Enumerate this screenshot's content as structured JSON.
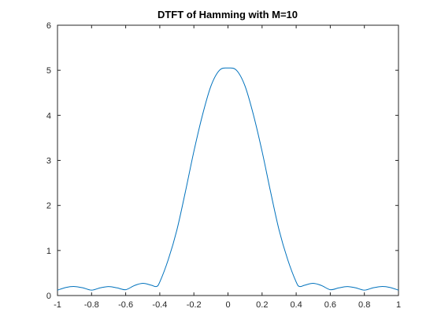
{
  "chart_data": {
    "type": "line",
    "title": "DTFT of Hamming with M=10",
    "xlabel": "",
    "ylabel": "",
    "xlim": [
      -1,
      1
    ],
    "ylim": [
      0,
      6
    ],
    "x_ticks": [
      -1,
      -0.8,
      -0.6,
      -0.4,
      -0.2,
      0,
      0.2,
      0.4,
      0.6,
      0.8,
      1
    ],
    "x_tick_labels": [
      "-1",
      "-0.8",
      "-0.6",
      "-0.4",
      "-0.2",
      "0",
      "0.2",
      "0.4",
      "0.6",
      "0.8",
      "1"
    ],
    "y_ticks": [
      0,
      1,
      2,
      3,
      4,
      5,
      6
    ],
    "y_tick_labels": [
      "0",
      "1",
      "2",
      "3",
      "4",
      "5",
      "6"
    ],
    "grid": false,
    "line_color": "#0072BD",
    "series": [
      {
        "x": [
          -1.0,
          -0.95,
          -0.9,
          -0.85,
          -0.8,
          -0.75,
          -0.7,
          -0.65,
          -0.6,
          -0.55,
          -0.5,
          -0.45,
          -0.42,
          -0.4,
          -0.35,
          -0.3,
          -0.25,
          -0.2,
          -0.15,
          -0.1,
          -0.05,
          0.0,
          0.05,
          0.1,
          0.15,
          0.2,
          0.25,
          0.3,
          0.35,
          0.4,
          0.42,
          0.45,
          0.5,
          0.55,
          0.6,
          0.65,
          0.7,
          0.75,
          0.8,
          0.85,
          0.9,
          0.95,
          1.0
        ],
        "y": [
          0.12,
          0.18,
          0.2,
          0.17,
          0.12,
          0.17,
          0.2,
          0.17,
          0.13,
          0.22,
          0.27,
          0.23,
          0.2,
          0.3,
          0.8,
          1.45,
          2.3,
          3.2,
          4.0,
          4.65,
          5.0,
          5.05,
          5.0,
          4.65,
          4.0,
          3.2,
          2.3,
          1.45,
          0.8,
          0.3,
          0.2,
          0.23,
          0.27,
          0.22,
          0.13,
          0.17,
          0.2,
          0.17,
          0.12,
          0.17,
          0.2,
          0.18,
          0.12
        ]
      }
    ]
  }
}
